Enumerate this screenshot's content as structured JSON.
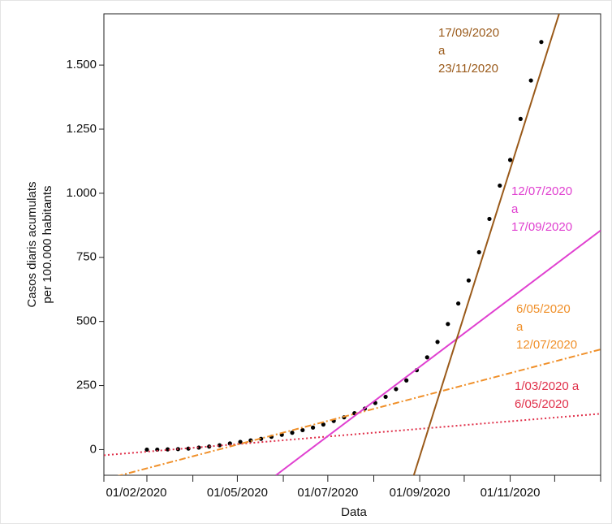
{
  "chart_data": {
    "type": "scatter",
    "y_label": [
      "Casos diaris acumulats",
      "per 100.000 habitants"
    ],
    "x_label": "Data",
    "xlim": [
      "01/02/2020",
      "01/01/2021"
    ],
    "xticks": [
      "01/02/2020",
      "01/05/2020",
      "01/07/2020",
      "01/09/2020",
      "01/11/2020"
    ],
    "xminor_ticks": [
      "01/03/2020",
      "01/04/2020",
      "01/06/2020",
      "01/08/2020",
      "01/10/2020",
      "01/12/2020",
      "01/01/2021"
    ],
    "ylim": [
      -100,
      1700
    ],
    "yticks": [
      0,
      250,
      500,
      750,
      {
        "value": 1000,
        "label": "1.000"
      },
      {
        "value": 1250,
        "label": "1.250"
      },
      {
        "value": 1500,
        "label": "1.500"
      }
    ],
    "points": {
      "color": "#000000",
      "x": [
        "01/03/2020",
        "08/03/2020",
        "15/03/2020",
        "22/03/2020",
        "29/03/2020",
        "05/04/2020",
        "12/04/2020",
        "19/04/2020",
        "26/04/2020",
        "03/05/2020",
        "10/05/2020",
        "17/05/2020",
        "24/05/2020",
        "31/05/2020",
        "07/06/2020",
        "14/06/2020",
        "21/06/2020",
        "28/06/2020",
        "05/07/2020",
        "12/07/2020",
        "19/07/2020",
        "26/07/2020",
        "02/08/2020",
        "09/08/2020",
        "16/08/2020",
        "23/08/2020",
        "30/08/2020",
        "06/09/2020",
        "13/09/2020",
        "20/09/2020",
        "27/09/2020",
        "04/10/2020",
        "11/10/2020",
        "18/10/2020",
        "25/10/2020",
        "01/11/2020",
        "08/11/2020",
        "15/11/2020",
        "22/11/2020"
      ],
      "values": [
        0,
        0,
        1,
        2,
        4,
        8,
        12,
        17,
        24,
        30,
        36,
        42,
        50,
        58,
        66,
        76,
        86,
        98,
        112,
        126,
        142,
        160,
        182,
        206,
        236,
        270,
        310,
        360,
        420,
        490,
        570,
        660,
        770,
        900,
        1030,
        1130,
        1290,
        1440,
        1590
      ]
    },
    "fits": [
      {
        "label": [
          "1/03/2020 a",
          "6/05/2020"
        ],
        "color": "#e0304a",
        "dash": "2,3",
        "x": [
          "01/02/2020",
          "01/01/2021"
        ],
        "values": [
          -22,
          140
        ]
      },
      {
        "label": [
          "6/05/2020",
          "a",
          "12/07/2020"
        ],
        "color": "#f0902a",
        "dash": "8,3,2,3",
        "x": [
          "01/02/2020",
          "01/01/2021"
        ],
        "values": [
          -117,
          391
        ]
      },
      {
        "label": [
          "12/07/2020",
          "a",
          "17/09/2020"
        ],
        "color": "#e040d0",
        "dash": "none",
        "x": [
          "27/05/2020",
          "01/01/2021"
        ],
        "values": [
          -100,
          855
        ]
      },
      {
        "label": [
          "17/09/2020",
          "a",
          "23/11/2020"
        ],
        "color": "#9a5a1a",
        "dash": "none",
        "x": [
          "28/08/2020",
          "04/12/2020"
        ],
        "values": [
          -100,
          1700
        ]
      }
    ]
  }
}
